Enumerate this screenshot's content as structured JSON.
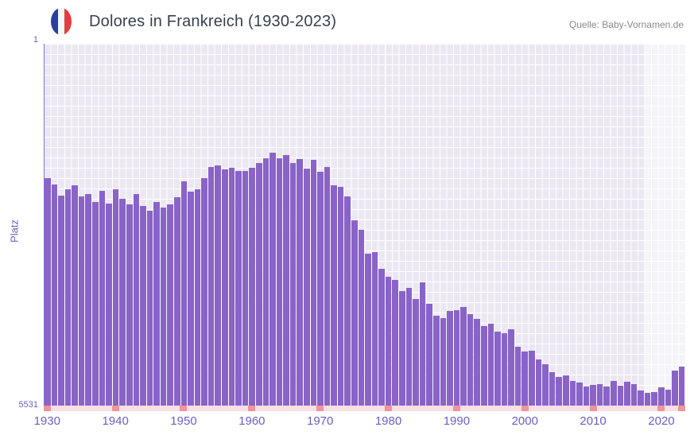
{
  "header": {
    "title": "Dolores in Frankreich (1930-2023)",
    "source": "Quelle: Baby-Vornamen.de"
  },
  "chart_data": {
    "type": "bar",
    "title": "Dolores in Frankreich (1930-2023)",
    "xlabel": "",
    "ylabel": "Platz",
    "y_axis": {
      "top_label": "1",
      "bottom_label": "5531",
      "min": 1,
      "max": 5531,
      "inverted": true
    },
    "x_ticks": [
      1930,
      1940,
      1950,
      1960,
      1970,
      1980,
      1990,
      2000,
      2010,
      2020
    ],
    "marker_years": [
      1930,
      1940,
      1950,
      1960,
      1970,
      1980,
      1990,
      2000,
      2010,
      2020,
      2023
    ],
    "overlay_start_year": 2018,
    "x": [
      1930,
      1931,
      1932,
      1933,
      1934,
      1935,
      1936,
      1937,
      1938,
      1939,
      1940,
      1941,
      1942,
      1943,
      1944,
      1945,
      1946,
      1947,
      1948,
      1949,
      1950,
      1951,
      1952,
      1953,
      1954,
      1955,
      1956,
      1957,
      1958,
      1959,
      1960,
      1961,
      1962,
      1963,
      1964,
      1965,
      1966,
      1967,
      1968,
      1969,
      1970,
      1971,
      1972,
      1973,
      1974,
      1975,
      1976,
      1977,
      1978,
      1979,
      1980,
      1981,
      1982,
      1983,
      1984,
      1985,
      1986,
      1987,
      1988,
      1989,
      1990,
      1991,
      1992,
      1993,
      1994,
      1995,
      1996,
      1997,
      1998,
      1999,
      2000,
      2001,
      2002,
      2003,
      2004,
      2005,
      2006,
      2007,
      2008,
      2009,
      2010,
      2011,
      2012,
      2013,
      2014,
      2015,
      2016,
      2017,
      2018,
      2019,
      2020,
      2021,
      2022,
      2023
    ],
    "values": [
      2050,
      2150,
      2320,
      2230,
      2170,
      2330,
      2300,
      2420,
      2250,
      2440,
      2230,
      2370,
      2450,
      2300,
      2480,
      2550,
      2420,
      2500,
      2460,
      2350,
      2100,
      2260,
      2230,
      2060,
      1880,
      1860,
      1920,
      1900,
      1950,
      1940,
      1900,
      1820,
      1750,
      1670,
      1750,
      1700,
      1830,
      1760,
      1910,
      1780,
      1960,
      1880,
      2160,
      2190,
      2330,
      2700,
      2850,
      3210,
      3180,
      3440,
      3560,
      3610,
      3780,
      3730,
      3900,
      3650,
      3980,
      4160,
      4190,
      4090,
      4070,
      4020,
      4130,
      4210,
      4310,
      4280,
      4400,
      4430,
      4360,
      4630,
      4710,
      4690,
      4820,
      4900,
      5020,
      5090,
      5070,
      5150,
      5180,
      5240,
      5220,
      5200,
      5240,
      5160,
      5230,
      5170,
      5200,
      5300,
      5340,
      5320,
      5250,
      5290,
      5000,
      4940
    ],
    "colors": {
      "bar": "#8a63c8",
      "plot_background": "#ebe8f3",
      "grid": "#ffffff",
      "axis_text": "#6d5ec2",
      "title_text": "#37414e",
      "source_text": "#8a8a8a",
      "strip_background": "#fadfe4",
      "tick_marker": "#ef959b",
      "flag_blue": "#2a3f9d",
      "flag_red": "#df3e42"
    },
    "legend": "off",
    "grid": "on"
  }
}
